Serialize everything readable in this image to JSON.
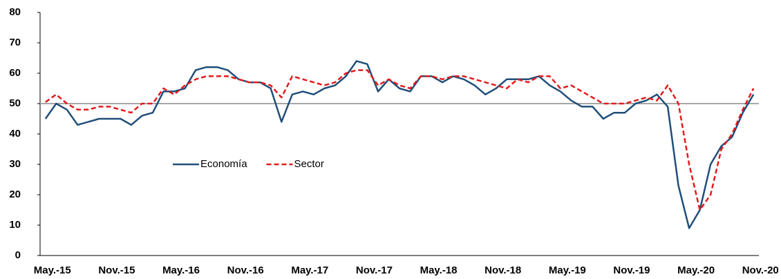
{
  "chart_data": {
    "type": "line",
    "categories": [
      "May.-15",
      null,
      null,
      null,
      null,
      null,
      "Nov.-15",
      null,
      null,
      null,
      null,
      null,
      "May.-16",
      null,
      null,
      null,
      null,
      null,
      "Nov.-16",
      null,
      null,
      null,
      null,
      null,
      "May.-17",
      null,
      null,
      null,
      null,
      null,
      "Nov.-17",
      null,
      null,
      null,
      null,
      null,
      "May.-18",
      null,
      null,
      null,
      null,
      null,
      "Nov.-18",
      null,
      null,
      null,
      null,
      null,
      "May.-19",
      null,
      null,
      null,
      null,
      null,
      "Nov.-19",
      null,
      null,
      null,
      null,
      null,
      "May.-20",
      null,
      null,
      null,
      null,
      null,
      "Nov.-20"
    ],
    "series": [
      {
        "name": "Economía",
        "color": "#1f4e79",
        "dash": false,
        "values": [
          45,
          50,
          48,
          43,
          44,
          45,
          45,
          45,
          43,
          46,
          47,
          54,
          54,
          55,
          61,
          62,
          62,
          61,
          58,
          57,
          57,
          55,
          44,
          53,
          54,
          53,
          55,
          56,
          59,
          64,
          63,
          54,
          58,
          55,
          54,
          59,
          59,
          57,
          59,
          58,
          56,
          53,
          55,
          58,
          58,
          58,
          59,
          56,
          54,
          51,
          49,
          49,
          45,
          47,
          47,
          50,
          51,
          53,
          49,
          23,
          9,
          15,
          30,
          36,
          39,
          47,
          53
        ]
      },
      {
        "name": "Sector",
        "color": "#e31a1c",
        "dash": true,
        "values": [
          50.5,
          53,
          50,
          48,
          48,
          49,
          49,
          48,
          47,
          50,
          50,
          55,
          53,
          56,
          58,
          59,
          59,
          59,
          58,
          57,
          57,
          56,
          52,
          59,
          58,
          57,
          56,
          57,
          60,
          61,
          61,
          56,
          58,
          56,
          55,
          59,
          59,
          58,
          59,
          59,
          58,
          57,
          56,
          55,
          58,
          57,
          59,
          59,
          55,
          56,
          54,
          52,
          50,
          50,
          50,
          51,
          52,
          51,
          56,
          50,
          30,
          15,
          20,
          35,
          40,
          48,
          55
        ]
      }
    ],
    "reference_line": 50,
    "reference_color": "#a6a6a6",
    "ylim": [
      0,
      80
    ],
    "yticks": [
      0,
      10,
      20,
      30,
      40,
      50,
      60,
      70,
      80
    ]
  }
}
